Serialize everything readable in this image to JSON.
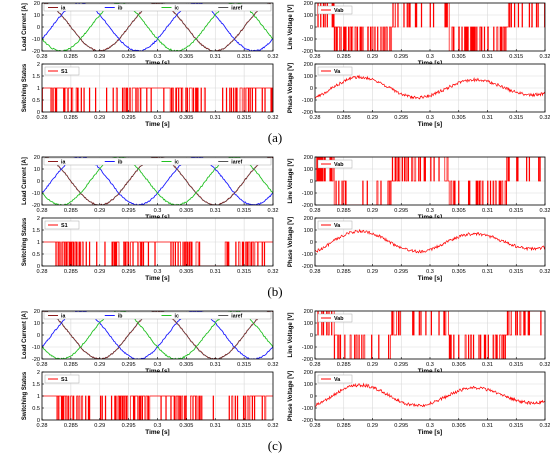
{
  "figure": {
    "subfigure_labels": [
      "(a)",
      "(b)",
      "(c)"
    ]
  },
  "colors": {
    "ia": "#8b1a1a",
    "ib": "#1a1aff",
    "ic": "#22c022",
    "iaref": "#555555",
    "signal": "#ff0000",
    "grid": "#d9d9d9",
    "axis": "#000000"
  },
  "chart_data": [
    {
      "type": "line",
      "panel": "a-load-current",
      "xlabel": "Time [s]",
      "ylabel": "Load Current [A]",
      "xlim": [
        0.28,
        0.32
      ],
      "ylim": [
        -20,
        20
      ],
      "xticks": [
        0.28,
        0.285,
        0.29,
        0.295,
        0.3,
        0.305,
        0.31,
        0.315,
        0.32
      ],
      "yticks": [
        -20,
        -10,
        0,
        10,
        20
      ],
      "legend": [
        "ia",
        "ib",
        "ic",
        "iaref"
      ],
      "legend_position": "top",
      "series": [
        {
          "name": "ia",
          "amplitude": 20,
          "frequency_hz": 50,
          "phase_deg": 0
        },
        {
          "name": "ib",
          "amplitude": 20,
          "frequency_hz": 50,
          "phase_deg": -120
        },
        {
          "name": "ic",
          "amplitude": 20,
          "frequency_hz": 50,
          "phase_deg": 120
        },
        {
          "name": "iaref",
          "amplitude": 20,
          "frequency_hz": 50,
          "phase_deg": 0
        }
      ],
      "grid": true
    },
    {
      "type": "line",
      "panel": "a-line-voltage",
      "xlabel": "Time [s]",
      "ylabel": "Line Voltage [V]",
      "xlim": [
        0.28,
        0.32
      ],
      "ylim": [
        -200,
        200
      ],
      "xticks": [
        0.28,
        0.285,
        0.29,
        0.295,
        0.3,
        0.305,
        0.31,
        0.315,
        0.32
      ],
      "yticks": [
        -200,
        -100,
        0,
        100,
        200
      ],
      "legend": [
        "Vab"
      ],
      "legend_position": "top-left",
      "series": [
        {
          "name": "Vab",
          "levels": [
            -200,
            0,
            200
          ],
          "pwm": true
        }
      ],
      "grid": true
    },
    {
      "type": "line",
      "panel": "a-switching-status",
      "xlabel": "Time [s]",
      "ylabel": "Switching Status",
      "xlim": [
        0.28,
        0.32
      ],
      "ylim": [
        0,
        2
      ],
      "xticks": [
        0.28,
        0.285,
        0.29,
        0.295,
        0.3,
        0.305,
        0.31,
        0.315,
        0.32
      ],
      "yticks": [
        0,
        0.5,
        1,
        1.5,
        2
      ],
      "legend": [
        "S1"
      ],
      "legend_position": "top-left",
      "series": [
        {
          "name": "S1",
          "levels": [
            0,
            1
          ],
          "pwm": true
        }
      ],
      "grid": true
    },
    {
      "type": "line",
      "panel": "a-phase-voltage",
      "xlabel": "Time [s]",
      "ylabel": "Phase Voltage [V]",
      "xlim": [
        0.28,
        0.32
      ],
      "ylim": [
        -200,
        200
      ],
      "xticks": [
        0.28,
        0.285,
        0.29,
        0.295,
        0.3,
        0.305,
        0.31,
        0.315,
        0.32
      ],
      "yticks": [
        -200,
        -100,
        0,
        100,
        200
      ],
      "legend": [
        "Va"
      ],
      "legend_position": "top-left",
      "series": [
        {
          "name": "Va",
          "fundamental_amplitude_v": 100,
          "noisy": true
        }
      ],
      "grid": true
    },
    {
      "type": "line",
      "panel": "b-load-current",
      "xlabel": "Time [s]",
      "ylabel": "Load Current [A]",
      "xlim": [
        0.28,
        0.32
      ],
      "ylim": [
        -20,
        20
      ],
      "xticks": [
        0.28,
        0.285,
        0.29,
        0.295,
        0.3,
        0.305,
        0.31,
        0.315,
        0.32
      ],
      "yticks": [
        -20,
        -10,
        0,
        10,
        20
      ],
      "legend": [
        "ia",
        "ib",
        "ic",
        "iaref"
      ],
      "legend_position": "top",
      "series": [
        {
          "name": "ia",
          "amplitude": 20,
          "frequency_hz": 50,
          "phase_deg": 0
        },
        {
          "name": "ib",
          "amplitude": 20,
          "frequency_hz": 50,
          "phase_deg": -120
        },
        {
          "name": "ic",
          "amplitude": 20,
          "frequency_hz": 50,
          "phase_deg": 120
        },
        {
          "name": "iaref",
          "amplitude": 20,
          "frequency_hz": 50,
          "phase_deg": 0
        }
      ],
      "grid": true
    },
    {
      "type": "line",
      "panel": "b-line-voltage",
      "xlabel": "Time [s]",
      "ylabel": "Line Voltage [V]",
      "xlim": [
        0.28,
        0.32
      ],
      "ylim": [
        -200,
        200
      ],
      "xticks": [
        0.28,
        0.285,
        0.29,
        0.295,
        0.3,
        0.305,
        0.31,
        0.315,
        0.32
      ],
      "yticks": [
        -200,
        -100,
        0,
        100,
        200
      ],
      "legend": [
        "Vab"
      ],
      "legend_position": "top-left",
      "series": [
        {
          "name": "Vab",
          "levels": [
            -200,
            0,
            200
          ],
          "pwm": true
        }
      ],
      "grid": true
    },
    {
      "type": "line",
      "panel": "b-switching-status",
      "xlabel": "Time [s]",
      "ylabel": "Switching Status",
      "xlim": [
        0.28,
        0.32
      ],
      "ylim": [
        0,
        2
      ],
      "xticks": [
        0.28,
        0.285,
        0.29,
        0.295,
        0.3,
        0.305,
        0.31,
        0.315,
        0.32
      ],
      "yticks": [
        0,
        0.5,
        1,
        1.5,
        2
      ],
      "legend": [
        "S1"
      ],
      "legend_position": "top-left",
      "series": [
        {
          "name": "S1",
          "levels": [
            0,
            1
          ],
          "pwm": true
        }
      ],
      "grid": true
    },
    {
      "type": "line",
      "panel": "b-phase-voltage",
      "xlabel": "Time [s]",
      "ylabel": "Phase Voltage [V]",
      "xlim": [
        0.28,
        0.32
      ],
      "ylim": [
        -200,
        200
      ],
      "xticks": [
        0.28,
        0.285,
        0.29,
        0.295,
        0.3,
        0.305,
        0.31,
        0.315,
        0.32
      ],
      "yticks": [
        -200,
        -100,
        0,
        100,
        200
      ],
      "legend": [
        "Va"
      ],
      "legend_position": "top-left",
      "series": [
        {
          "name": "Va",
          "fundamental_amplitude_v": 100,
          "noisy": true
        }
      ],
      "grid": true
    },
    {
      "type": "line",
      "panel": "c-load-current",
      "xlabel": "Time [s]",
      "ylabel": "Load Current [A]",
      "xlim": [
        0.28,
        0.32
      ],
      "ylim": [
        -20,
        20
      ],
      "xticks": [
        0.28,
        0.285,
        0.29,
        0.295,
        0.3,
        0.305,
        0.31,
        0.315,
        0.32
      ],
      "yticks": [
        -20,
        -10,
        0,
        10,
        20
      ],
      "legend": [
        "ia",
        "ib",
        "ic",
        "iaref"
      ],
      "legend_position": "top",
      "series": [
        {
          "name": "ia",
          "amplitude": 20,
          "frequency_hz": 50,
          "phase_deg": 0
        },
        {
          "name": "ib",
          "amplitude": 20,
          "frequency_hz": 50,
          "phase_deg": -120
        },
        {
          "name": "ic",
          "amplitude": 20,
          "frequency_hz": 50,
          "phase_deg": 120
        },
        {
          "name": "iaref",
          "amplitude": 20,
          "frequency_hz": 50,
          "phase_deg": 0
        }
      ],
      "grid": true
    },
    {
      "type": "line",
      "panel": "c-line-voltage",
      "xlabel": "Time [s]",
      "ylabel": "Line Voltage [V]",
      "xlim": [
        0.28,
        0.32
      ],
      "ylim": [
        -200,
        200
      ],
      "xticks": [
        0.28,
        0.285,
        0.29,
        0.295,
        0.3,
        0.305,
        0.31,
        0.315,
        0.32
      ],
      "yticks": [
        -200,
        -100,
        0,
        100,
        200
      ],
      "legend": [
        "Vab"
      ],
      "legend_position": "top-left",
      "series": [
        {
          "name": "Vab",
          "levels": [
            -200,
            0,
            200
          ],
          "pwm": true
        }
      ],
      "grid": true
    },
    {
      "type": "line",
      "panel": "c-switching-status",
      "xlabel": "Time [s]",
      "ylabel": "Switching Status",
      "xlim": [
        0.28,
        0.32
      ],
      "ylim": [
        0,
        2
      ],
      "xticks": [
        0.28,
        0.285,
        0.29,
        0.295,
        0.3,
        0.305,
        0.31,
        0.315,
        0.32
      ],
      "yticks": [
        0,
        0.5,
        1,
        1.5,
        2
      ],
      "legend": [
        "S1"
      ],
      "legend_position": "top-left",
      "series": [
        {
          "name": "S1",
          "levels": [
            0,
            1
          ],
          "pwm": true
        }
      ],
      "grid": true
    },
    {
      "type": "line",
      "panel": "c-phase-voltage",
      "xlabel": "Time [s]",
      "ylabel": "Phase Voltage [V]",
      "xlim": [
        0.28,
        0.32
      ],
      "ylim": [
        -200,
        200
      ],
      "xticks": [
        0.28,
        0.285,
        0.29,
        0.295,
        0.3,
        0.305,
        0.31,
        0.315,
        0.32
      ],
      "yticks": [
        -200,
        -100,
        0,
        100,
        200
      ],
      "legend": [
        "Va"
      ],
      "legend_position": "top-left",
      "series": [
        {
          "name": "Va",
          "fundamental_amplitude_v": 100,
          "noisy": true
        }
      ],
      "grid": true
    }
  ]
}
